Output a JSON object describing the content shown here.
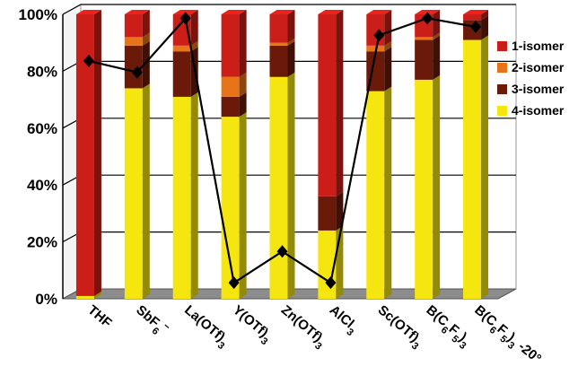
{
  "chart_data": {
    "type": "bar",
    "stacked": true,
    "categories": [
      "THF",
      "SbF6−",
      "La(OTf)3",
      "Y(OTf)3",
      "Zn(OTf)3",
      "AlCl3",
      "Sc(OTf)3",
      "B(C6F5)3",
      "B(C6F5)3 -20°"
    ],
    "category_labels": [
      [
        {
          "t": "THF"
        }
      ],
      [
        {
          "t": "SbF"
        },
        {
          "t": "6",
          "sub": true
        },
        {
          "t": "−",
          "sup": true
        }
      ],
      [
        {
          "t": "La(OTf)"
        },
        {
          "t": "3",
          "sub": true
        }
      ],
      [
        {
          "t": "Y(OTf)"
        },
        {
          "t": "3",
          "sub": true
        }
      ],
      [
        {
          "t": "Zn(OTf)"
        },
        {
          "t": "3",
          "sub": true
        }
      ],
      [
        {
          "t": "AlCl"
        },
        {
          "t": "3",
          "sub": true
        }
      ],
      [
        {
          "t": "Sc(OTf)"
        },
        {
          "t": "3",
          "sub": true
        }
      ],
      [
        {
          "t": "B(C"
        },
        {
          "t": "6",
          "sub": true
        },
        {
          "t": "F"
        },
        {
          "t": "5",
          "sub": true
        },
        {
          "t": ")"
        },
        {
          "t": "3",
          "sub": true
        }
      ],
      [
        {
          "t": "B(C"
        },
        {
          "t": "6",
          "sub": true
        },
        {
          "t": "F"
        },
        {
          "t": "5",
          "sub": true
        },
        {
          "t": ")"
        },
        {
          "t": "3",
          "sub": true
        },
        {
          "t": " -20°"
        }
      ]
    ],
    "series": [
      {
        "name": "4-isomer",
        "color": "#f5e60f",
        "values": [
          1,
          74,
          71,
          64,
          78,
          24,
          73,
          77,
          91
        ]
      },
      {
        "name": "3-isomer",
        "color": "#6b1a0a",
        "values": [
          0,
          15,
          16,
          7,
          11,
          12,
          14,
          14,
          7
        ]
      },
      {
        "name": "2-isomer",
        "color": "#e8741a",
        "values": [
          0,
          3,
          2,
          7,
          1,
          0,
          2,
          1,
          0
        ]
      },
      {
        "name": "1-isomer",
        "color": "#cc1e18",
        "values": [
          99,
          8,
          11,
          22,
          10,
          64,
          11,
          8,
          2
        ]
      }
    ],
    "line": {
      "values": [
        83,
        79,
        98,
        5,
        16,
        5,
        92,
        98,
        95
      ],
      "color": "#000000",
      "marker": "diamond"
    },
    "yticks": [
      "0%",
      "20%",
      "40%",
      "60%",
      "80%",
      "100%"
    ],
    "ylim": [
      0,
      100
    ],
    "legend_order": [
      "1-isomer",
      "2-isomer",
      "3-isomer",
      "4-isomer"
    ],
    "legend_position": "right",
    "grid": true,
    "title": "",
    "xlabel": "",
    "ylabel": ""
  }
}
